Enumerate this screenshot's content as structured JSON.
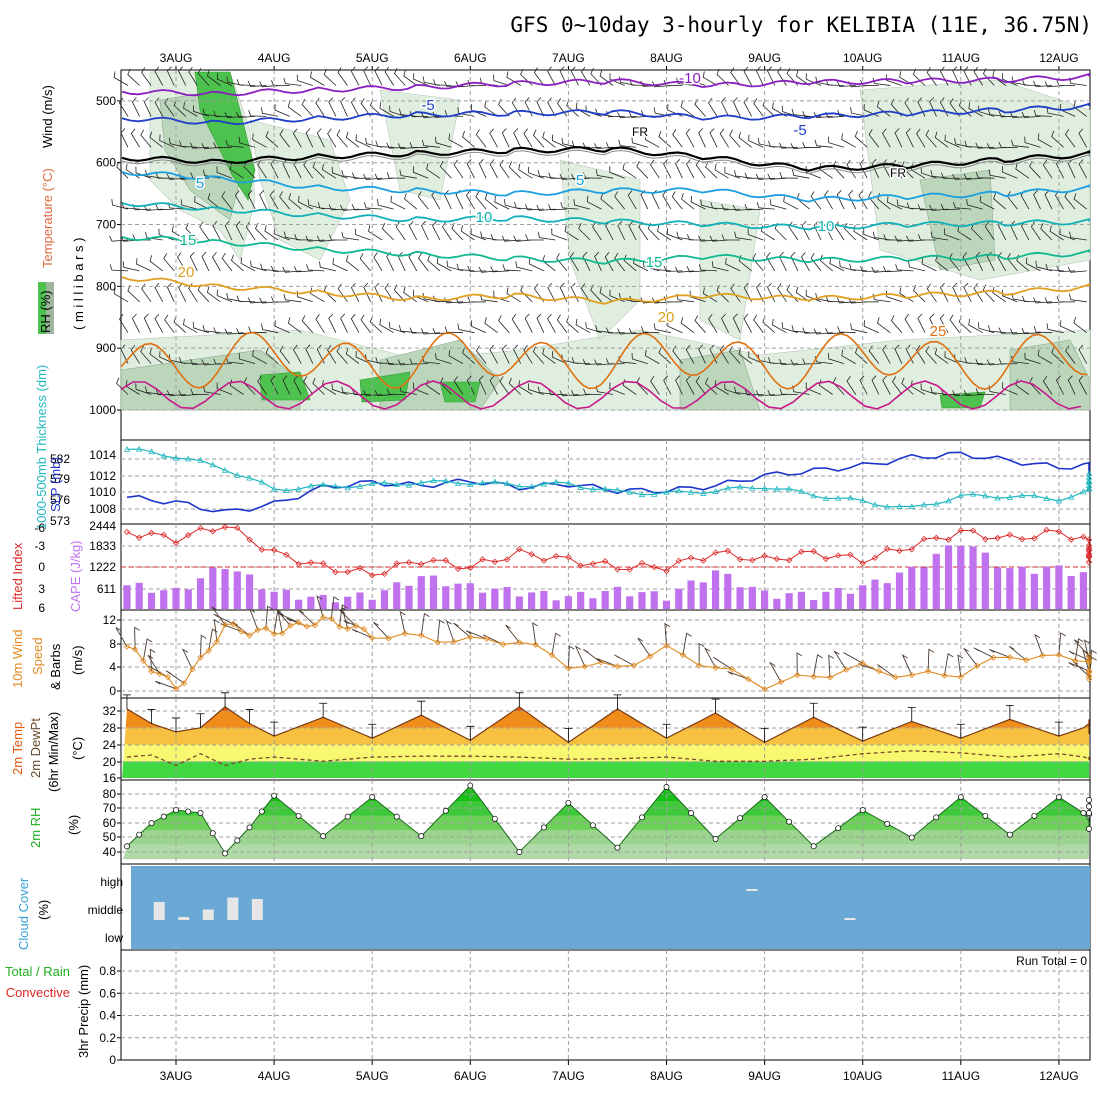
{
  "title": "GFS 0~10day 3-hourly for KELIBIA (11E, 36.75N)",
  "colors": {
    "background": "#ffffff",
    "rh_light": "#dfeedf",
    "rh_mid": "#bcd6bc",
    "rh_dark": "#9fb59f",
    "rh_green": "#4ec24e",
    "temp_m10": "#8a20c0",
    "temp_m5": "#1f3fc8",
    "temp_fr": "#000000",
    "temp_5": "#1aa0e0",
    "temp_10": "#10b0b8",
    "temp_15": "#10b890",
    "temp_20": "#e0a020",
    "temp_25": "#e07010",
    "temp_30": "#c8188c",
    "slp": "#1c33cc",
    "thickness": "#22b8c0",
    "lifted": "#dd2a2a",
    "cape": "#c072ee",
    "wind": "#e08a20",
    "barb": "#4a3a30",
    "temp_dark": "#e05a10",
    "temp_orange": "#f08c1a",
    "temp_amber": "#f8c040",
    "temp_yellow": "#f8f870",
    "temp_green": "#40d840",
    "rh_top": "#20c020",
    "rh_bottom": "#b0d8a8",
    "cloud_sky": "#6aa8d6",
    "cloud_bar": "#e6e6e6",
    "grid": "#a0a0a0"
  },
  "date_labels": [
    "3AUG",
    "4AUG",
    "5AUG",
    "6AUG",
    "7AUG",
    "8AUG",
    "9AUG",
    "10AUG",
    "11AUG",
    "12AUG"
  ],
  "panels": {
    "upper_air": {
      "ylabel_wind": "Wind (m/s)",
      "ylabel_temp": "Temperature (°C)",
      "ylabel_mb": "( m i l l i b a r s )",
      "rh_label": "RH (%)",
      "yticks": [
        "500",
        "600",
        "700",
        "800",
        "900",
        "1000"
      ],
      "contour_labels": [
        "-10",
        "-5",
        "-5",
        "FR",
        "FR",
        "5",
        "5",
        "10",
        "10",
        "15",
        "15",
        "20",
        "20",
        "25"
      ]
    },
    "slp_thickness": {
      "ylabel_thickness": "1000-500mb Thickness (dm)",
      "ylabel_slp": "SLP (mb)",
      "thickness_ticks": [
        "582",
        "579",
        "576",
        "573"
      ],
      "slp_ticks": [
        "1014",
        "1012",
        "1010",
        "1008"
      ]
    },
    "lifted_cape": {
      "ylabel_lifted": "Lifted Index",
      "ylabel_cape": "CAPE (J/kg)",
      "li_ticks": [
        "-6",
        "-3",
        "0",
        "3",
        "6"
      ],
      "cape_ticks": [
        "2444",
        "1833",
        "1222",
        "611"
      ]
    },
    "wind": {
      "ylabel_a": "10m Wind",
      "ylabel_b": "Speed",
      "ylabel_c": "& Barbs",
      "ylabel_unit": "(m/s)",
      "yticks": [
        "12",
        "8",
        "4",
        "0"
      ]
    },
    "temperature": {
      "ylabel_a": "2m Temp",
      "ylabel_b": "2m DewPt",
      "ylabel_c": "(6hr Min/Max)",
      "ylabel_unit": "(°C)",
      "yticks": [
        "32",
        "28",
        "24",
        "20",
        "16"
      ]
    },
    "rh2m": {
      "ylabel": "2m RH",
      "ylabel_unit": "(%)",
      "yticks": [
        "80",
        "70",
        "60",
        "50",
        "40"
      ]
    },
    "cloud": {
      "ylabel": "Cloud Cover",
      "ylabel_unit": "(%)",
      "levels": [
        "high",
        "middle",
        "low"
      ]
    },
    "precip": {
      "ylabel_total": "Total / Rain",
      "ylabel_conv": "Convective",
      "ylabel": "3hr Precip (mm)",
      "yticks": [
        "0.8",
        "0.6",
        "0.4",
        "0.2",
        "0"
      ],
      "run_total": "Run Total = 0"
    }
  },
  "chart_data": [
    {
      "type": "line",
      "title": "",
      "xlabel": "",
      "ylabel": "Wind (m/s) / Temperature (°C) / RH (%) (millibars)",
      "ylim": [
        1000,
        450
      ],
      "y_reversed": true,
      "x_unit": "days from 3AUG 00Z",
      "series": [
        {
          "name": "-10",
          "x": [
            0,
            1,
            2,
            3,
            4,
            5,
            6,
            7,
            8,
            9,
            10
          ],
          "values": [
            485,
            488,
            482,
            478,
            472,
            468,
            475,
            470,
            468,
            466,
            460
          ]
        },
        {
          "name": "-5",
          "x": [
            0,
            1,
            2,
            3,
            4,
            5,
            6,
            7,
            8,
            9,
            10
          ],
          "values": [
            528,
            535,
            528,
            522,
            520,
            518,
            528,
            525,
            520,
            515,
            508
          ]
        },
        {
          "name": "FR",
          "x": [
            0,
            1,
            2,
            3,
            4,
            5,
            6,
            7,
            8,
            9,
            10
          ],
          "values": [
            592,
            598,
            590,
            585,
            580,
            578,
            592,
            610,
            605,
            595,
            585
          ]
        },
        {
          "name": "5",
          "x": [
            0,
            1,
            2,
            3,
            4,
            5,
            6,
            7,
            8,
            9,
            10
          ],
          "values": [
            615,
            625,
            640,
            645,
            650,
            645,
            645,
            660,
            655,
            650,
            640
          ]
        },
        {
          "name": "10",
          "x": [
            0,
            1,
            2,
            3,
            4,
            5,
            6,
            7,
            8,
            9,
            10
          ],
          "values": [
            665,
            675,
            685,
            692,
            690,
            695,
            700,
            705,
            700,
            698,
            695
          ]
        },
        {
          "name": "15",
          "x": [
            0,
            1,
            2,
            3,
            4,
            5,
            6,
            7,
            8,
            9,
            10
          ],
          "values": [
            720,
            728,
            740,
            748,
            755,
            760,
            752,
            758,
            755,
            752,
            745
          ]
        },
        {
          "name": "20",
          "x": [
            0,
            1,
            2,
            3,
            4,
            5,
            6,
            7,
            8,
            9,
            10
          ],
          "values": [
            785,
            800,
            810,
            820,
            815,
            825,
            815,
            820,
            815,
            810,
            800
          ]
        }
      ]
    },
    {
      "type": "line",
      "title": "",
      "xlabel": "",
      "ylabel": "SLP (mb) / 1000-500mb Thickness (dm)",
      "x_unit": "days from 3AUG 00Z",
      "series": [
        {
          "name": "SLP (mb)",
          "x": [
            -0.5,
            0,
            0.5,
            1,
            1.5,
            2,
            2.5,
            3,
            3.5,
            4,
            4.5,
            5,
            5.5,
            6,
            6.5,
            7,
            7.5,
            8,
            8.5,
            9,
            9.5,
            10,
            10.3
          ],
          "values": [
            1009.4,
            1008.8,
            1007.6,
            1008.6,
            1010.6,
            1011.2,
            1010.8,
            1011.4,
            1010.6,
            1011.0,
            1010.2,
            1010.2,
            1010.8,
            1012.0,
            1012.6,
            1013.2,
            1014.2,
            1014.6,
            1013.8,
            1013.0,
            1013.4,
            1013.2,
            1012.6
          ]
        },
        {
          "name": "1000-500mb Thickness (dm)",
          "x": [
            -0.5,
            0,
            0.5,
            1,
            1.5,
            2,
            2.5,
            3,
            3.5,
            4,
            4.5,
            5,
            5.5,
            6,
            6.5,
            7,
            7.5,
            8,
            8.5,
            9,
            9.5,
            10,
            10.3
          ],
          "values": [
            583.4,
            582.4,
            580.6,
            577.6,
            578.0,
            578.2,
            578.6,
            578.6,
            578.2,
            578.4,
            577.2,
            577.0,
            577.4,
            578.0,
            576.8,
            575.8,
            574.8,
            576.6,
            576.6,
            576.2,
            577.8,
            578.6,
            579.6
          ]
        }
      ]
    },
    {
      "type": "bar",
      "title": "",
      "xlabel": "",
      "ylabel": "Lifted Index / CAPE (J/kg)",
      "x_unit": "days from 3AUG 00Z",
      "series": [
        {
          "name": "Lifted Index",
          "x": [
            -0.5,
            0,
            0.5,
            1,
            1.5,
            2,
            2.5,
            3,
            3.5,
            4,
            4.5,
            5,
            5.5,
            6,
            6.5,
            7,
            7.5,
            8,
            8.5,
            9,
            9.5,
            10,
            10.3
          ],
          "values": [
            -5,
            -4,
            -6,
            -2,
            0,
            1,
            -1,
            0,
            -2,
            -1,
            0,
            0,
            -2,
            -1,
            -2,
            -1,
            -3,
            -5,
            -4,
            -5,
            -3,
            -2,
            -1
          ]
        },
        {
          "name": "CAPE (J/kg)",
          "x": [
            -0.5,
            0,
            0.5,
            1,
            1.5,
            2,
            2.5,
            3,
            3.5,
            4,
            4.5,
            5,
            5.5,
            6,
            6.5,
            7,
            7.5,
            8,
            8.5,
            9,
            9.5,
            10,
            10.3
          ],
          "values": [
            700,
            500,
            1300,
            500,
            300,
            400,
            950,
            650,
            500,
            350,
            550,
            380,
            1100,
            450,
            400,
            650,
            1150,
            2000,
            1150,
            1200,
            850,
            850,
            700
          ]
        }
      ]
    },
    {
      "type": "line",
      "title": "",
      "xlabel": "",
      "ylabel": "10m Wind Speed & Barbs (m/s)",
      "ylim": [
        0,
        12
      ],
      "x_unit": "days from 3AUG 00Z",
      "series": [
        {
          "name": "10m Wind Speed",
          "x": [
            -0.5,
            -0.25,
            0,
            0.25,
            0.5,
            0.75,
            1,
            1.25,
            1.5,
            1.75,
            2,
            2.5,
            3,
            3.5,
            4,
            4.5,
            5,
            5.5,
            6,
            6.5,
            7,
            7.5,
            8,
            8.5,
            9,
            9.5,
            10,
            10.3
          ],
          "values": [
            7.5,
            4,
            0.5,
            5,
            11,
            10,
            10,
            11,
            12,
            11,
            9.5,
            9,
            8.5,
            8.5,
            4.5,
            4,
            7,
            4,
            1,
            2.5,
            4,
            2.5,
            3,
            6,
            5.5,
            5.5,
            3,
            2.5
          ]
        }
      ]
    },
    {
      "type": "area",
      "title": "",
      "xlabel": "",
      "ylabel": "2m Temp / 2m DewPt (6hr Min/Max) (°C)",
      "ylim": [
        15,
        33
      ],
      "x_unit": "days from 3AUG 00Z",
      "series": [
        {
          "name": "2m Temp",
          "x": [
            -0.5,
            -0.25,
            0,
            0.25,
            0.5,
            0.75,
            1,
            1.5,
            2,
            2.5,
            3,
            3.5,
            4,
            4.5,
            5,
            5.5,
            6,
            6.5,
            7,
            7.5,
            8,
            8.5,
            9,
            9.5,
            10,
            10.3
          ],
          "values": [
            32.5,
            29,
            27,
            28,
            33,
            29,
            26,
            30.5,
            25.5,
            31,
            25,
            33,
            24.5,
            32.5,
            25.5,
            31.5,
            24.5,
            30.5,
            24.8,
            29.5,
            25.5,
            30,
            26,
            30,
            26.5,
            28
          ]
        },
        {
          "name": "2m DewPt",
          "x": [
            -0.5,
            -0.25,
            0,
            0.25,
            0.5,
            0.75,
            1,
            1.5,
            2,
            2.5,
            3,
            3.5,
            4,
            4.5,
            5,
            5.5,
            6,
            6.5,
            7,
            7.5,
            8,
            8.5,
            9,
            9.5,
            10,
            10.3
          ],
          "values": [
            21,
            21.5,
            19,
            21.8,
            19,
            20.5,
            21,
            20,
            21,
            21.2,
            21.2,
            21,
            20.5,
            20.6,
            21,
            20,
            20,
            20.5,
            21.8,
            22.5,
            22,
            21,
            21.8,
            20.3,
            21,
            21.5
          ]
        }
      ]
    },
    {
      "type": "area",
      "title": "",
      "xlabel": "",
      "ylabel": "2m RH (%)",
      "ylim": [
        35,
        85
      ],
      "x_unit": "days from 3AUG 00Z",
      "series": [
        {
          "name": "2m RH",
          "x": [
            -0.5,
            -0.25,
            0,
            0.25,
            0.5,
            0.75,
            1,
            1.5,
            2,
            2.5,
            3,
            3.5,
            4,
            4.5,
            5,
            5.5,
            6,
            6.5,
            7,
            7.5,
            8,
            8.5,
            9,
            9.5,
            10,
            10.3
          ],
          "values": [
            44,
            60,
            69,
            67,
            39,
            57,
            79,
            51,
            78,
            51,
            86,
            40,
            74,
            43,
            85,
            49,
            78,
            44,
            69,
            50,
            78,
            52,
            78,
            56,
            76,
            67
          ]
        }
      ]
    },
    {
      "type": "bar",
      "title": "",
      "xlabel": "",
      "ylabel": "Cloud Cover (%)",
      "x_unit": "days from 3AUG 00Z",
      "series": [
        {
          "name": "middle",
          "x": [
            -0.125,
            0.125,
            0.375,
            0.625,
            0.875
          ],
          "values": [
            60,
            10,
            35,
            75,
            70
          ]
        },
        {
          "name": "high",
          "x": [
            5.875
          ],
          "values": [
            10
          ]
        },
        {
          "name": "low",
          "x": [
            6.875
          ],
          "values": [
            10
          ]
        }
      ]
    },
    {
      "type": "bar",
      "title": "",
      "xlabel": "",
      "ylabel": "3hr Precip (mm)",
      "ylim": [
        0,
        0.9
      ],
      "series": [
        {
          "name": "Total / Rain",
          "x": [],
          "values": []
        },
        {
          "name": "Convective",
          "x": [],
          "values": []
        }
      ]
    }
  ]
}
